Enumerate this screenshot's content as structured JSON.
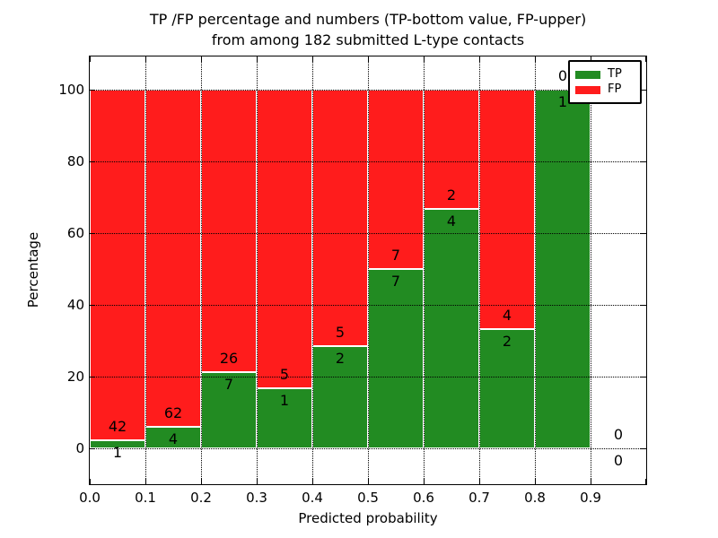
{
  "chart_data": {
    "type": "bar",
    "subtype": "stacked-percentage-histogram",
    "title_lines": [
      "TP /FP percentage and numbers (TP-bottom value, FP-upper)",
      "from among 182 submitted L-type contacts"
    ],
    "xlabel": "Predicted probability",
    "ylabel": "Percentage",
    "xlim": [
      0.0,
      1.0
    ],
    "ylim": [
      -10,
      110
    ],
    "xtick_labels": [
      "0.0",
      "0.1",
      "0.2",
      "0.3",
      "0.4",
      "0.5",
      "0.6",
      "0.7",
      "0.8",
      "0.9"
    ],
    "ytick_labels": [
      "0",
      "20",
      "40",
      "60",
      "80",
      "100"
    ],
    "ytick_values": [
      0,
      20,
      40,
      60,
      80,
      100
    ],
    "grid_style": "dotted",
    "total_contacts": 182,
    "bins": [
      {
        "range": "0.0-0.1",
        "tp": 1,
        "fp": 42,
        "tp_percent": 2.33
      },
      {
        "range": "0.1-0.2",
        "tp": 4,
        "fp": 62,
        "tp_percent": 6.06
      },
      {
        "range": "0.2-0.3",
        "tp": 7,
        "fp": 26,
        "tp_percent": 21.21
      },
      {
        "range": "0.3-0.4",
        "tp": 1,
        "fp": 5,
        "tp_percent": 16.67
      },
      {
        "range": "0.4-0.5",
        "tp": 2,
        "fp": 5,
        "tp_percent": 28.57
      },
      {
        "range": "0.5-0.6",
        "tp": 7,
        "fp": 7,
        "tp_percent": 50.0
      },
      {
        "range": "0.6-0.7",
        "tp": 4,
        "fp": 2,
        "tp_percent": 66.67
      },
      {
        "range": "0.7-0.8",
        "tp": 2,
        "fp": 4,
        "tp_percent": 33.33
      },
      {
        "range": "0.8-0.9",
        "tp": 1,
        "fp": 0,
        "tp_percent": 100.0
      },
      {
        "range": "0.9-1.0",
        "tp": 0,
        "fp": 0,
        "tp_percent": null
      }
    ],
    "series": [
      {
        "name": "TP",
        "counts": [
          1,
          4,
          7,
          1,
          2,
          7,
          4,
          2,
          1,
          0
        ]
      },
      {
        "name": "FP",
        "counts": [
          42,
          62,
          26,
          5,
          5,
          7,
          2,
          4,
          0,
          0
        ]
      }
    ],
    "legend": {
      "position": "upper-right",
      "entries": [
        {
          "label": "TP",
          "color": "#228b22"
        },
        {
          "label": "FP",
          "color": "#ff1c1c"
        }
      ]
    },
    "colors": {
      "tp": "#228b22",
      "fp": "#ff1c1c",
      "bar_edge": "#ffffff",
      "grid": "#000000",
      "text": "#000000",
      "background": "#ffffff"
    }
  }
}
